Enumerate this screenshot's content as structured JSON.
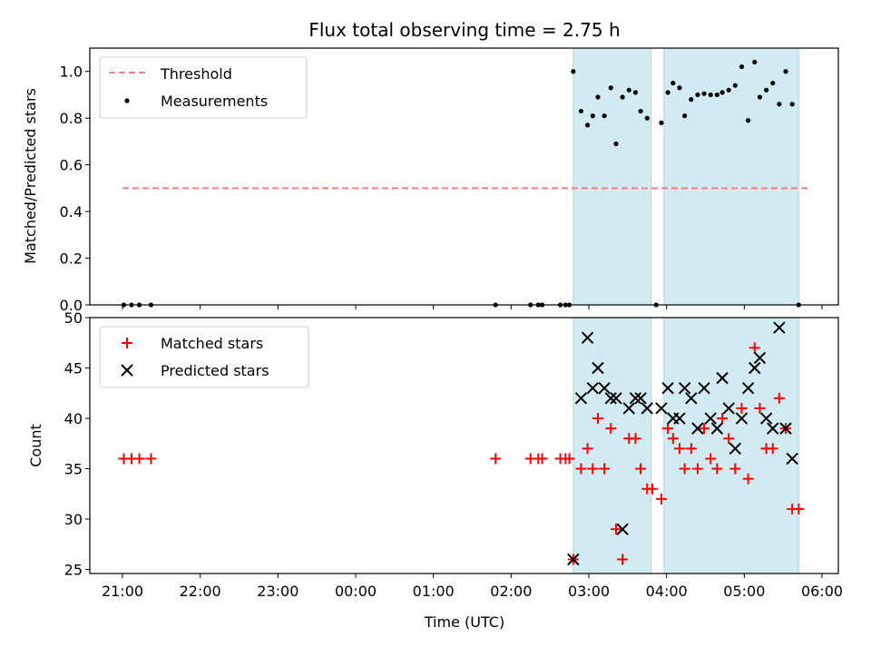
{
  "title": "Flux total observing time = 2.75 h",
  "chart_data": [
    {
      "type": "scatter",
      "ylabel": "Matched/Predicted stars",
      "ylim": [
        0,
        1.1
      ],
      "yticks": [
        "0.0",
        "0.2",
        "0.4",
        "0.6",
        "0.8",
        "1.0"
      ],
      "ytick_values": [
        0,
        0.2,
        0.4,
        0.6,
        0.8,
        1.0
      ],
      "legend": {
        "placement": "upper-left",
        "entries": [
          "Threshold",
          "Measurements"
        ]
      },
      "threshold": {
        "name": "Threshold",
        "value": 0.5,
        "x_range": [
          "21:00",
          "05:50"
        ],
        "color": "#f08080"
      },
      "shaded_intervals": [
        [
          "02:48",
          "03:48"
        ],
        [
          "03:58",
          "05:42"
        ]
      ],
      "shade_color": "#add8e6",
      "series": [
        {
          "name": "Measurements",
          "color": "#000000",
          "points": [
            [
              "21:01",
              0
            ],
            [
              "21:07",
              0
            ],
            [
              "21:13",
              0
            ],
            [
              "21:22",
              0
            ],
            [
              "01:48",
              0
            ],
            [
              "02:15",
              0
            ],
            [
              "02:21",
              0
            ],
            [
              "02:24",
              0
            ],
            [
              "02:38",
              0
            ],
            [
              "02:42",
              0
            ],
            [
              "02:45",
              0
            ],
            [
              "02:48",
              1.0
            ],
            [
              "02:54",
              0.83
            ],
            [
              "02:59",
              0.77
            ],
            [
              "03:03",
              0.81
            ],
            [
              "03:07",
              0.89
            ],
            [
              "03:12",
              0.81
            ],
            [
              "03:17",
              0.93
            ],
            [
              "03:21",
              0.69
            ],
            [
              "03:26",
              0.89
            ],
            [
              "03:31",
              0.92
            ],
            [
              "03:36",
              0.91
            ],
            [
              "03:40",
              0.83
            ],
            [
              "03:45",
              0.8
            ],
            [
              "03:52",
              0.0
            ],
            [
              "03:56",
              0.78
            ],
            [
              "04:01",
              0.91
            ],
            [
              "04:05",
              0.95
            ],
            [
              "04:10",
              0.93
            ],
            [
              "04:14",
              0.81
            ],
            [
              "04:19",
              0.88
            ],
            [
              "04:24",
              0.9
            ],
            [
              "04:29",
              0.905
            ],
            [
              "04:34",
              0.9
            ],
            [
              "04:39",
              0.9
            ],
            [
              "04:43",
              0.91
            ],
            [
              "04:48",
              0.92
            ],
            [
              "04:53",
              0.94
            ],
            [
              "04:58",
              1.02
            ],
            [
              "05:03",
              0.79
            ],
            [
              "05:08",
              1.04
            ],
            [
              "05:12",
              0.89
            ],
            [
              "05:17",
              0.92
            ],
            [
              "05:22",
              0.95
            ],
            [
              "05:27",
              0.86
            ],
            [
              "05:32",
              1.0
            ],
            [
              "05:37",
              0.86
            ],
            [
              "05:42",
              0.0
            ]
          ]
        }
      ]
    },
    {
      "type": "scatter",
      "ylabel": "Count",
      "xlabel": "Time (UTC)",
      "ylim": [
        24.6,
        50
      ],
      "yticks": [
        "25",
        "30",
        "35",
        "40",
        "45",
        "50"
      ],
      "ytick_values": [
        25,
        30,
        35,
        40,
        45,
        50
      ],
      "xticks": [
        "21:00",
        "22:00",
        "23:00",
        "00:00",
        "01:00",
        "02:00",
        "03:00",
        "04:00",
        "05:00",
        "06:00"
      ],
      "legend": {
        "placement": "upper-left",
        "entries": [
          "Matched stars",
          "Predicted stars"
        ]
      },
      "shaded_intervals": [
        [
          "02:48",
          "03:48"
        ],
        [
          "03:58",
          "05:42"
        ]
      ],
      "series": [
        {
          "name": "Matched stars",
          "color": "#ff0000",
          "marker": "+",
          "points": [
            [
              "21:01",
              36
            ],
            [
              "21:07",
              36
            ],
            [
              "21:13",
              36
            ],
            [
              "21:22",
              36
            ],
            [
              "01:48",
              36
            ],
            [
              "02:15",
              36
            ],
            [
              "02:21",
              36
            ],
            [
              "02:24",
              36
            ],
            [
              "02:38",
              36
            ],
            [
              "02:42",
              36
            ],
            [
              "02:45",
              36
            ],
            [
              "02:48",
              26
            ],
            [
              "02:54",
              35
            ],
            [
              "02:59",
              37
            ],
            [
              "03:03",
              35
            ],
            [
              "03:07",
              40
            ],
            [
              "03:12",
              35
            ],
            [
              "03:17",
              39
            ],
            [
              "03:21",
              29
            ],
            [
              "03:26",
              26
            ],
            [
              "03:31",
              38
            ],
            [
              "03:36",
              38
            ],
            [
              "03:40",
              35
            ],
            [
              "03:45",
              33
            ],
            [
              "03:49",
              33
            ],
            [
              "03:56",
              32
            ],
            [
              "04:01",
              39
            ],
            [
              "04:05",
              38
            ],
            [
              "04:10",
              37
            ],
            [
              "04:14",
              35
            ],
            [
              "04:19",
              37
            ],
            [
              "04:24",
              35
            ],
            [
              "04:29",
              39
            ],
            [
              "04:34",
              36
            ],
            [
              "04:39",
              35
            ],
            [
              "04:43",
              40
            ],
            [
              "04:48",
              38
            ],
            [
              "04:53",
              35
            ],
            [
              "04:58",
              41
            ],
            [
              "05:03",
              34
            ],
            [
              "05:08",
              47
            ],
            [
              "05:12",
              41
            ],
            [
              "05:17",
              37
            ],
            [
              "05:22",
              37
            ],
            [
              "05:27",
              42
            ],
            [
              "05:32",
              39
            ],
            [
              "05:37",
              31
            ],
            [
              "05:42",
              31
            ]
          ]
        },
        {
          "name": "Predicted stars",
          "color": "#000000",
          "marker": "x",
          "points": [
            [
              "02:48",
              26
            ],
            [
              "02:54",
              42
            ],
            [
              "02:59",
              48
            ],
            [
              "03:03",
              43
            ],
            [
              "03:07",
              45
            ],
            [
              "03:12",
              43
            ],
            [
              "03:17",
              42
            ],
            [
              "03:21",
              42
            ],
            [
              "03:26",
              29
            ],
            [
              "03:31",
              41
            ],
            [
              "03:36",
              42
            ],
            [
              "03:40",
              42
            ],
            [
              "03:45",
              41
            ],
            [
              "03:56",
              41
            ],
            [
              "04:01",
              43
            ],
            [
              "04:05",
              40
            ],
            [
              "04:10",
              40
            ],
            [
              "04:14",
              43
            ],
            [
              "04:19",
              42
            ],
            [
              "04:24",
              39
            ],
            [
              "04:29",
              43
            ],
            [
              "04:34",
              40
            ],
            [
              "04:39",
              39
            ],
            [
              "04:43",
              44
            ],
            [
              "04:48",
              41
            ],
            [
              "04:53",
              37
            ],
            [
              "04:58",
              40
            ],
            [
              "05:03",
              43
            ],
            [
              "05:08",
              45
            ],
            [
              "05:12",
              46
            ],
            [
              "05:17",
              40
            ],
            [
              "05:22",
              39
            ],
            [
              "05:27",
              49
            ],
            [
              "05:32",
              39
            ],
            [
              "05:37",
              36
            ]
          ]
        }
      ]
    }
  ]
}
